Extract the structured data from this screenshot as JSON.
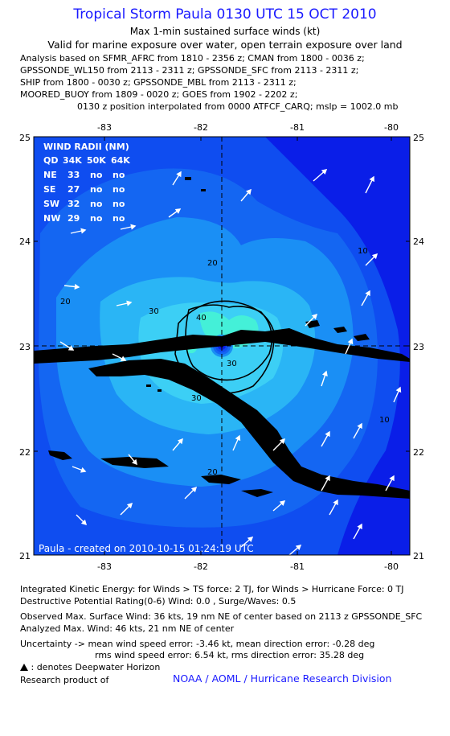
{
  "header": {
    "title": "Tropical Storm Paula 0130 UTC 15 OCT 2010",
    "subtitle1": "Max 1-min sustained surface winds (kt)",
    "subtitle2": "Valid for marine exposure over water, open terrain exposure over land",
    "analysis_lines": [
      "Analysis based on SFMR_AFRC from 1810 - 2356 z; CMAN from 1800 - 0036 z;",
      "GPSSONDE_WL150 from 2113 - 2311 z; GPSSONDE_SFC from 2113 - 2311 z;",
      "SHIP from 1800 - 0030 z; GPSSONDE_MBL from 2113 - 2311 z;",
      "MOORED_BUOY from 1809 - 0020 z; GOES from 1902 - 2202 z;"
    ],
    "position_note": "0130 z position interpolated from 0000 ATFCF_CARQ; mslp = 1002.0 mb"
  },
  "map": {
    "lon_ticks": [
      "-83",
      "-82",
      "-81",
      "-80"
    ],
    "lat_ticks": [
      "25",
      "24",
      "23",
      "22",
      "21"
    ],
    "center": {
      "lon": -81.75,
      "lat": 23.0
    },
    "wind_radii": {
      "title": "WIND RADII (NM)",
      "columns": [
        "QD",
        "34K",
        "50K",
        "64K"
      ],
      "rows": [
        [
          "NE",
          "33",
          "no",
          "no"
        ],
        [
          "SE",
          "27",
          "no",
          "no"
        ],
        [
          "SW",
          "32",
          "no",
          "no"
        ],
        [
          "NW",
          "29",
          "no",
          "no"
        ]
      ]
    },
    "contour_labels": [
      "10",
      "20",
      "20",
      "20",
      "20",
      "30",
      "30",
      "30",
      "40",
      "10"
    ],
    "created_label": "Paula - created on 2010-10-15 01:24:19 UTC",
    "colors": {
      "outer": "#0a1ee8",
      "band10": "#0f4df0",
      "band20": "#1a8ff5",
      "band30": "#3ccff5",
      "band40": "#44f0d8",
      "land": "#000000"
    }
  },
  "footer": {
    "ike": "Integrated Kinetic Energy:  for Winds > TS force: 2 TJ,  for Winds > Hurricane Force: 0 TJ",
    "destructive": "Destructive Potential Rating(0-6)   Wind: 0.0 , Surge/Waves: 0.5",
    "observed": "Observed Max. Surface Wind: 36 kts, 19 nm NE of center based on 2113 z GPSSONDE_SFC",
    "analyzed": "Analyzed Max. Wind: 46 kts, 21 nm NE of center",
    "uncertainty1": "Uncertainty -> mean wind speed error:  -3.46 kt,    mean direction error:  -0.28 deg",
    "uncertainty2": "rms wind speed error: 6.54 kt,    rms direction error: 35.28 deg",
    "deepwater": ": denotes Deepwater Horizon",
    "research": "Research product of",
    "org": "NOAA / AOML / Hurricane Research Division"
  }
}
